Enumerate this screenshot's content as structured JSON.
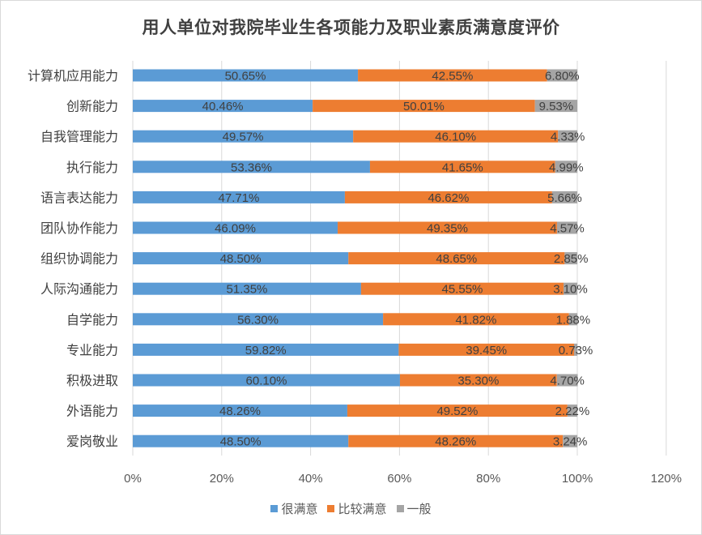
{
  "chart_data": {
    "type": "bar",
    "orientation": "horizontal",
    "stacked": true,
    "title": "用人单位对我院毕业生各项能力及职业素质满意度评价",
    "categories": [
      "计算机应用能力",
      "创新能力",
      "自我管理能力",
      "执行能力",
      "语言表达能力",
      "团队协作能力",
      "组织协调能力",
      "人际沟通能力",
      "自学能力",
      "专业能力",
      "积极进取",
      "外语能力",
      "爱岗敬业"
    ],
    "series": [
      {
        "name": "很满意",
        "color": "#5B9BD5",
        "values": [
          50.65,
          40.46,
          49.57,
          53.36,
          47.71,
          46.09,
          48.5,
          51.35,
          56.3,
          59.82,
          60.1,
          48.26,
          48.5
        ],
        "labels": [
          "50.65%",
          "40.46%",
          "49.57%",
          "53.36%",
          "47.71%",
          "46.09%",
          "48.50%",
          "51.35%",
          "56.30%",
          "59.82%",
          "60.10%",
          "48.26%",
          "48.50%"
        ]
      },
      {
        "name": "比较满意",
        "color": "#ED7D31",
        "values": [
          42.55,
          50.01,
          46.1,
          41.65,
          46.62,
          49.35,
          48.65,
          45.55,
          41.82,
          39.45,
          35.3,
          49.52,
          48.26
        ],
        "labels": [
          "42.55%",
          "50.01%",
          "46.10%",
          "41.65%",
          "46.62%",
          "49.35%",
          "48.65%",
          "45.55%",
          "41.82%",
          "39.45%",
          "35.30%",
          "49.52%",
          "48.26%"
        ]
      },
      {
        "name": "一般",
        "color": "#A5A5A5",
        "values": [
          6.8,
          9.53,
          4.33,
          4.99,
          5.66,
          4.57,
          2.85,
          3.1,
          1.88,
          0.73,
          4.7,
          2.22,
          3.24
        ],
        "labels": [
          "6.80%",
          "9.53%",
          "4.33%",
          "4.99%",
          "5.66%",
          "4.57%",
          "2.85%",
          "3.10%",
          "1.88%",
          "0.73%",
          "4.70%",
          "2.22%",
          "3.24%"
        ]
      }
    ],
    "xlim": [
      0,
      120
    ],
    "x_ticks": [
      "0%",
      "20%",
      "40%",
      "60%",
      "80%",
      "100%",
      "120%"
    ],
    "grid": "vertical",
    "legend_position": "bottom"
  }
}
